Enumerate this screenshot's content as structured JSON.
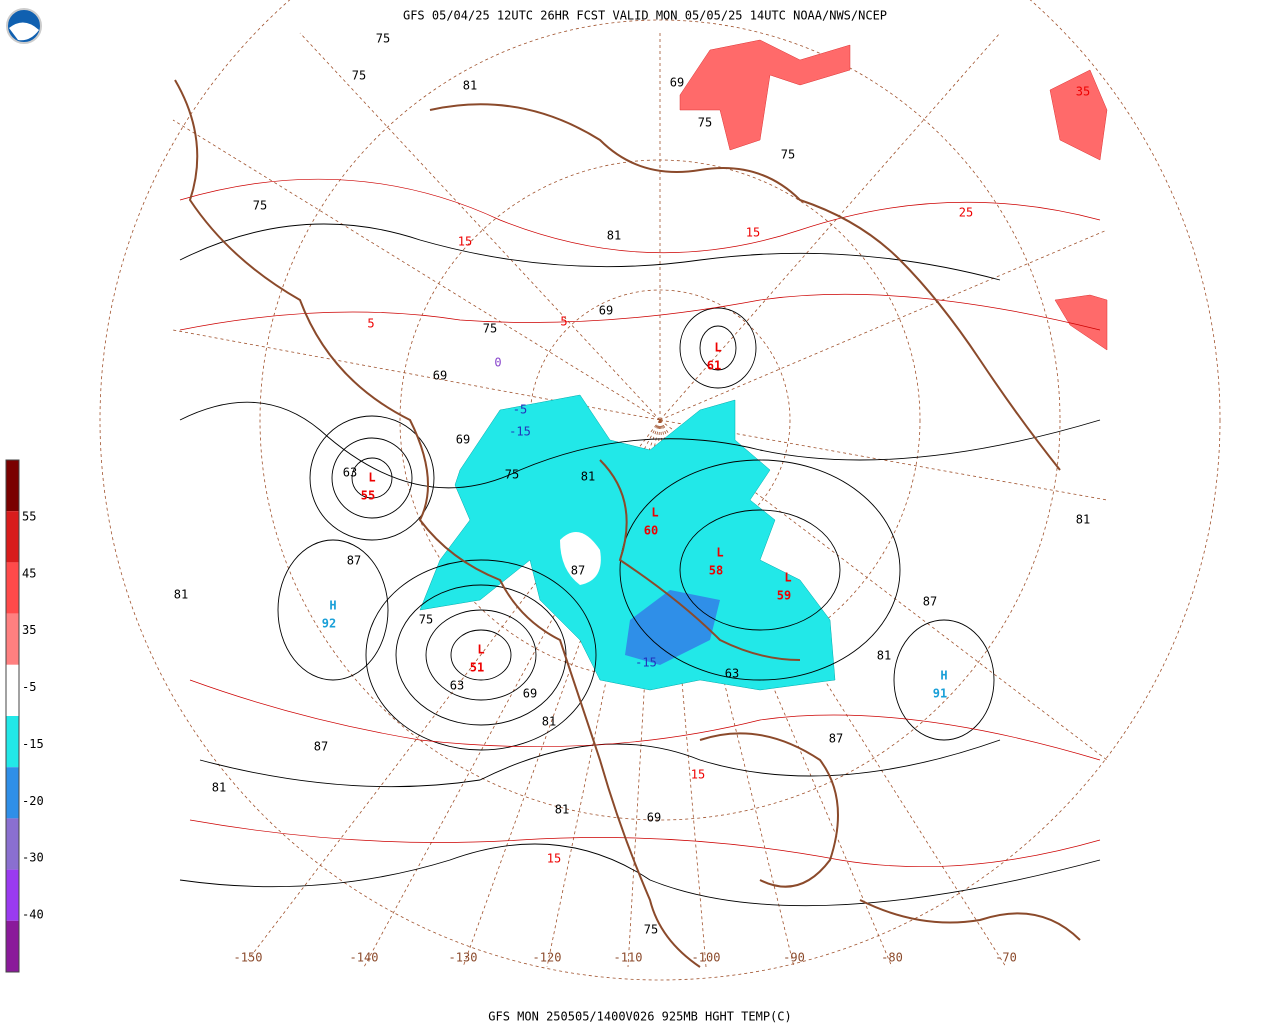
{
  "header": {
    "title": "GFS 05/04/25 12UTC 26HR FCST VALID MON 05/05/25 14UTC NOAA/NWS/NCEP"
  },
  "footer": "GFS MON 250505/1400V026 925MB HGHT TEMP(C)",
  "legend": {
    "ticks": [
      55,
      45,
      35,
      -5,
      -15,
      -20,
      -30,
      -40
    ],
    "colors": [
      "#7a0000",
      "#d81c1c",
      "#ff4a4a",
      "#ff8080",
      "#ffffff",
      "#22e8e8",
      "#2f8fe8",
      "#8a6fd0",
      "#9a3af0",
      "#8a1a9a"
    ]
  },
  "longitudes": [
    "-150",
    "-140",
    "-130",
    "-120",
    "-110",
    "-100",
    "-90",
    "-80",
    "-70"
  ],
  "centers": [
    {
      "type": "L",
      "value": "55"
    },
    {
      "type": "H",
      "value": "92"
    },
    {
      "type": "L",
      "value": "51"
    },
    {
      "type": "L",
      "value": "60"
    },
    {
      "type": "L",
      "value": "58"
    },
    {
      "type": "L",
      "value": "59"
    },
    {
      "type": "L",
      "value": "61"
    },
    {
      "type": "H",
      "value": "91"
    }
  ],
  "contour_labels": [
    {
      "text": "75",
      "color": "#000"
    },
    {
      "text": "75",
      "color": "#000"
    },
    {
      "text": "81",
      "color": "#000"
    },
    {
      "text": "75",
      "color": "#000"
    },
    {
      "text": "69",
      "color": "#000"
    },
    {
      "text": "75",
      "color": "#000"
    },
    {
      "text": "81",
      "color": "#000"
    },
    {
      "text": "75",
      "color": "#000"
    },
    {
      "text": "75",
      "color": "#000"
    },
    {
      "text": "69",
      "color": "#000"
    },
    {
      "text": "69",
      "color": "#000"
    },
    {
      "text": "63",
      "color": "#000"
    },
    {
      "text": "69",
      "color": "#000"
    },
    {
      "text": "75",
      "color": "#000"
    },
    {
      "text": "81",
      "color": "#000"
    },
    {
      "text": "87",
      "color": "#000"
    },
    {
      "text": "81",
      "color": "#000"
    },
    {
      "text": "75",
      "color": "#000"
    },
    {
      "text": "63",
      "color": "#000"
    },
    {
      "text": "69",
      "color": "#000"
    },
    {
      "text": "81",
      "color": "#000"
    },
    {
      "text": "87",
      "color": "#000"
    },
    {
      "text": "87",
      "color": "#000"
    },
    {
      "text": "81",
      "color": "#000"
    },
    {
      "text": "87",
      "color": "#000"
    },
    {
      "text": "81",
      "color": "#000"
    },
    {
      "text": "87",
      "color": "#000"
    },
    {
      "text": "81",
      "color": "#000"
    },
    {
      "text": "69",
      "color": "#000"
    },
    {
      "text": "75",
      "color": "#000"
    },
    {
      "text": "63",
      "color": "#000"
    },
    {
      "text": "81",
      "color": "#000"
    },
    {
      "text": "15",
      "color": "#e00"
    },
    {
      "text": "5",
      "color": "#e00"
    },
    {
      "text": "25",
      "color": "#e00"
    },
    {
      "text": "15",
      "color": "#e00"
    },
    {
      "text": "5",
      "color": "#e00"
    },
    {
      "text": "15",
      "color": "#e00"
    },
    {
      "text": "15",
      "color": "#e00"
    },
    {
      "text": "35",
      "color": "#e00"
    },
    {
      "text": "-5",
      "color": "#23b"
    },
    {
      "text": "-15",
      "color": "#23b"
    },
    {
      "text": "-15",
      "color": "#23b"
    },
    {
      "text": "0",
      "color": "#84c"
    }
  ]
}
